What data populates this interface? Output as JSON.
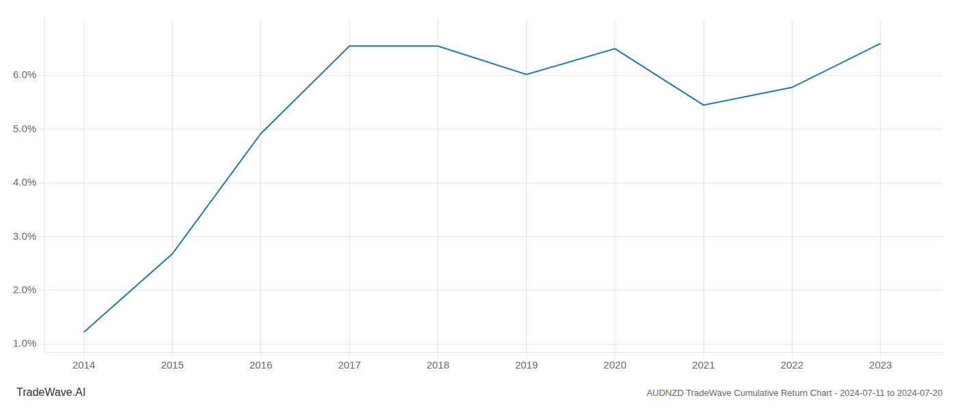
{
  "chart_data": {
    "type": "line",
    "x": [
      2014,
      2015,
      2016,
      2017,
      2018,
      2019,
      2020,
      2021,
      2022,
      2023
    ],
    "values": [
      1.22,
      2.68,
      4.92,
      6.55,
      6.55,
      6.02,
      6.5,
      5.45,
      5.78,
      6.6
    ],
    "color": "#2077b4",
    "xlim": [
      2013.55,
      2023.7
    ],
    "xticks": [
      2014,
      2015,
      2016,
      2017,
      2018,
      2019,
      2020,
      2021,
      2022,
      2023
    ],
    "ylim": [
      0.85,
      7.05
    ],
    "yticks": [
      {
        "value": 1.0,
        "label": "1.0%"
      },
      {
        "value": 2.0,
        "label": "2.0%"
      },
      {
        "value": 3.0,
        "label": "3.0%"
      },
      {
        "value": 4.0,
        "label": "4.0%"
      },
      {
        "value": 5.0,
        "label": "5.0%"
      },
      {
        "value": 6.0,
        "label": "6.0%"
      }
    ],
    "grid": true,
    "annotations": [
      "TradeWave.AI",
      "AUDNZD TradeWave Cumulative Return Chart - 2024-07-11 to 2024-07-20"
    ]
  }
}
